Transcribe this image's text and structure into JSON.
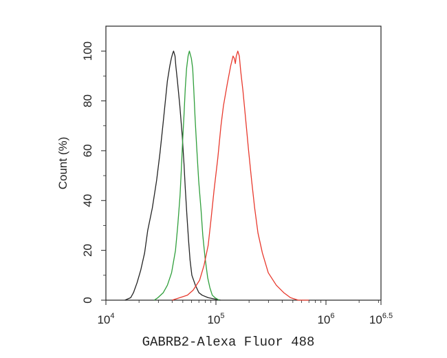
{
  "chart_data": {
    "type": "line",
    "title": "",
    "xlabel": "GABRB2-Alexa Fluor 488",
    "ylabel": "Count (%)",
    "x_scale": "log10",
    "xlim": [
      10000,
      3162278
    ],
    "ylim": [
      0,
      110
    ],
    "grid": false,
    "legend": "none",
    "x_ticks": [
      {
        "base": "10",
        "exp": "4",
        "value": 10000
      },
      {
        "base": "10",
        "exp": "5",
        "value": 100000
      },
      {
        "base": "10",
        "exp": "6",
        "value": 1000000
      },
      {
        "base": "10",
        "exp": "6.5",
        "value": 3162278
      }
    ],
    "y_ticks": [
      {
        "label": "0",
        "value": 0
      },
      {
        "label": "20",
        "value": 20
      },
      {
        "label": "40",
        "value": 40
      },
      {
        "label": "60",
        "value": 60
      },
      {
        "label": "80",
        "value": 80
      },
      {
        "label": "100",
        "value": 100
      }
    ],
    "series": [
      {
        "color": "#222222",
        "points": [
          [
            14900,
            0
          ],
          [
            16800,
            1
          ],
          [
            17800,
            3
          ],
          [
            19200,
            7
          ],
          [
            20700,
            12
          ],
          [
            22500,
            19
          ],
          [
            24000,
            28
          ],
          [
            26400,
            37
          ],
          [
            28900,
            48
          ],
          [
            31000,
            59
          ],
          [
            32900,
            70
          ],
          [
            34500,
            79
          ],
          [
            36200,
            88
          ],
          [
            38100,
            94
          ],
          [
            39300,
            97
          ],
          [
            40400,
            99
          ],
          [
            41200,
            100
          ],
          [
            42500,
            98
          ],
          [
            43200,
            94
          ],
          [
            44700,
            88
          ],
          [
            47000,
            78
          ],
          [
            49400,
            66
          ],
          [
            51200,
            55
          ],
          [
            52600,
            45
          ],
          [
            54500,
            34
          ],
          [
            56400,
            24
          ],
          [
            58200,
            16
          ],
          [
            60400,
            10
          ],
          [
            65000,
            6
          ],
          [
            70000,
            3
          ],
          [
            75000,
            2
          ],
          [
            85000,
            1
          ],
          [
            110000,
            0
          ]
        ]
      },
      {
        "color": "#2e9e3a",
        "points": [
          [
            27500,
            0
          ],
          [
            29700,
            1
          ],
          [
            33200,
            3
          ],
          [
            36200,
            6
          ],
          [
            39500,
            11
          ],
          [
            42900,
            20
          ],
          [
            45000,
            30
          ],
          [
            47200,
            42
          ],
          [
            48400,
            52
          ],
          [
            49700,
            63
          ],
          [
            51200,
            74
          ],
          [
            52600,
            85
          ],
          [
            54100,
            93
          ],
          [
            55800,
            98
          ],
          [
            57400,
            100
          ],
          [
            59800,
            97
          ],
          [
            61500,
            93
          ],
          [
            62800,
            85
          ],
          [
            64700,
            73
          ],
          [
            66700,
            62
          ],
          [
            69700,
            48
          ],
          [
            73300,
            36
          ],
          [
            76000,
            26
          ],
          [
            79700,
            17
          ],
          [
            84100,
            9
          ],
          [
            88100,
            5
          ],
          [
            92600,
            2
          ],
          [
            98000,
            1
          ],
          [
            107000,
            0
          ]
        ]
      },
      {
        "color": "#e8382c",
        "points": [
          [
            40000,
            0
          ],
          [
            47000,
            1
          ],
          [
            55000,
            2
          ],
          [
            62000,
            4
          ],
          [
            71000,
            8
          ],
          [
            78000,
            14
          ],
          [
            85000,
            22
          ],
          [
            90000,
            32
          ],
          [
            96000,
            44
          ],
          [
            104000,
            57
          ],
          [
            111000,
            70
          ],
          [
            117000,
            78
          ],
          [
            127000,
            87
          ],
          [
            136000,
            94
          ],
          [
            143000,
            98
          ],
          [
            147000,
            97
          ],
          [
            150000,
            95
          ],
          [
            153000,
            98
          ],
          [
            158000,
            100
          ],
          [
            163000,
            98
          ],
          [
            168000,
            92
          ],
          [
            176000,
            84
          ],
          [
            186000,
            73
          ],
          [
            198000,
            60
          ],
          [
            211000,
            48
          ],
          [
            225000,
            37
          ],
          [
            241000,
            27
          ],
          [
            264000,
            19
          ],
          [
            299000,
            11
          ],
          [
            354000,
            6
          ],
          [
            413000,
            3
          ],
          [
            476000,
            1
          ],
          [
            560000,
            0
          ],
          [
            700000,
            0
          ]
        ]
      }
    ]
  }
}
